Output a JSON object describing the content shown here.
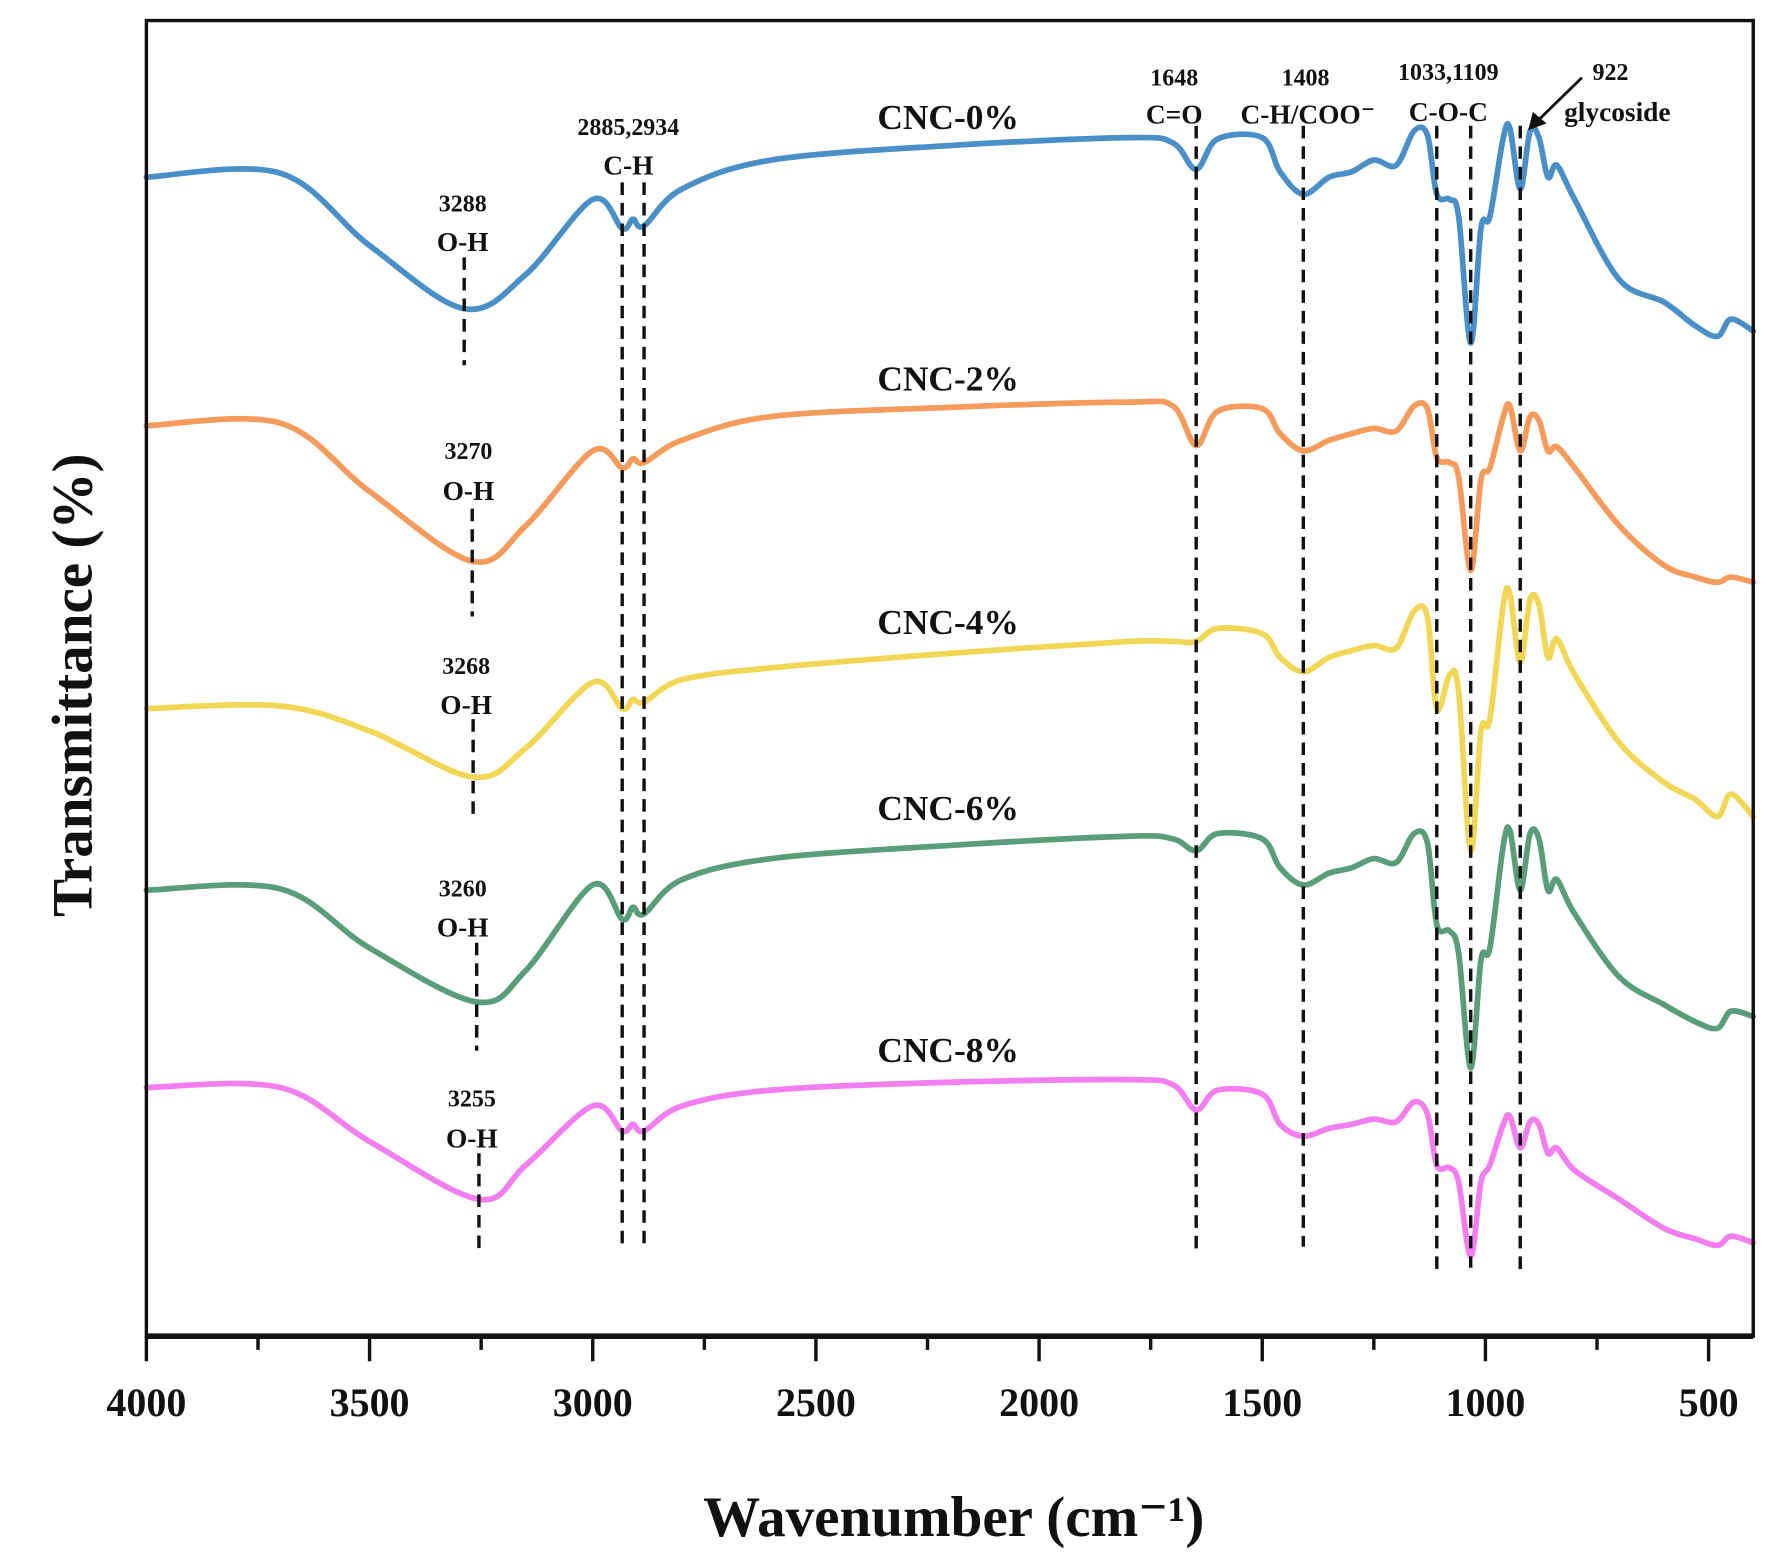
{
  "chart_data": {
    "type": "line",
    "title": "",
    "xlabel": "Wavenumber (cm⁻¹)",
    "ylabel": "Transmittance (%)",
    "xlim": [
      4000,
      400
    ],
    "ylim": [
      0,
      100
    ],
    "y_units": "arbitrary (stacked, offset)",
    "grid": false,
    "legend": "inline labels above each curve",
    "x_ticks": [
      "4000",
      "3500",
      "3000",
      "2500",
      "2000",
      "1500",
      "1000",
      "500"
    ],
    "x_tick_values": [
      4000,
      3500,
      3000,
      2500,
      2000,
      1500,
      1000,
      500
    ],
    "x_minor_tick_values": [
      3750,
      3250,
      2750,
      2250,
      1750,
      1250,
      750
    ],
    "series": [
      {
        "name": "CNC-0%",
        "color": "#4a8fc8",
        "x": [
          4000,
          3700,
          3500,
          3288,
          3150,
          3000,
          2934,
          2910,
          2885,
          2800,
          2600,
          2200,
          1800,
          1700,
          1648,
          1600,
          1500,
          1460,
          1408,
          1350,
          1300,
          1250,
          1200,
          1160,
          1130,
          1109,
          1080,
          1060,
          1033,
          1010,
          990,
          960,
          945,
          922,
          900,
          880,
          860,
          840,
          800,
          700,
          600,
          530,
          480,
          450,
          400
        ],
        "y": [
          88.1,
          88.4,
          82.9,
          78.1,
          80.7,
          86.4,
          84.2,
          84.9,
          84.4,
          87.2,
          89.4,
          90.5,
          91.1,
          90.7,
          88.7,
          91.0,
          91.1,
          88.5,
          86.8,
          88.1,
          88.5,
          89.4,
          89.0,
          91.6,
          91.3,
          86.8,
          86.4,
          85.1,
          75.5,
          84.2,
          85.1,
          91.1,
          91.8,
          87.2,
          91.6,
          91.1,
          88.1,
          89.0,
          86.4,
          80.3,
          78.6,
          76.8,
          76.0,
          77.3,
          76.4
        ]
      },
      {
        "name": "CNC-2%",
        "color": "#f59b5c",
        "x": [
          4000,
          3700,
          3500,
          3270,
          3150,
          3000,
          2934,
          2910,
          2885,
          2800,
          2600,
          2200,
          1800,
          1700,
          1648,
          1600,
          1500,
          1460,
          1408,
          1350,
          1300,
          1250,
          1200,
          1160,
          1130,
          1109,
          1080,
          1060,
          1033,
          1010,
          990,
          960,
          945,
          922,
          900,
          880,
          860,
          840,
          800,
          700,
          600,
          530,
          480,
          450,
          400
        ],
        "y": [
          69.2,
          69.4,
          64.2,
          58.9,
          61.6,
          67.3,
          66.0,
          66.7,
          66.4,
          68.1,
          69.9,
          70.6,
          71.0,
          70.7,
          67.7,
          70.3,
          70.5,
          68.6,
          67.3,
          68.1,
          68.6,
          69.0,
          68.8,
          70.7,
          70.5,
          66.8,
          66.4,
          65.3,
          58.2,
          65.1,
          66.0,
          69.9,
          70.7,
          67.3,
          69.9,
          69.6,
          67.3,
          67.6,
          66.0,
          61.6,
          58.6,
          57.7,
          57.3,
          57.7,
          57.3
        ]
      },
      {
        "name": "CNC-4%",
        "color": "#f2d756",
        "x": [
          4000,
          3700,
          3500,
          3268,
          3150,
          3000,
          2934,
          2910,
          2885,
          2800,
          2600,
          2200,
          1800,
          1700,
          1648,
          1600,
          1500,
          1460,
          1408,
          1350,
          1300,
          1250,
          1200,
          1160,
          1130,
          1109,
          1080,
          1060,
          1033,
          1010,
          990,
          960,
          945,
          922,
          900,
          880,
          860,
          840,
          800,
          700,
          600,
          530,
          480,
          450,
          400
        ],
        "y": [
          47.7,
          47.9,
          46.0,
          42.5,
          44.7,
          49.7,
          47.7,
          48.4,
          48.2,
          49.9,
          50.8,
          51.9,
          52.8,
          52.8,
          52.8,
          53.8,
          53.4,
          51.6,
          50.5,
          51.6,
          52.1,
          52.5,
          52.3,
          55.1,
          54.7,
          47.7,
          50.3,
          49.0,
          36.9,
          46.0,
          46.9,
          55.6,
          56.4,
          51.2,
          56.0,
          55.6,
          51.6,
          53.0,
          50.3,
          45.1,
          42.1,
          40.8,
          39.5,
          41.2,
          39.5
        ]
      },
      {
        "name": "CNC-6%",
        "color": "#5a9d7b",
        "x": [
          4000,
          3700,
          3500,
          3260,
          3150,
          3000,
          2934,
          2910,
          2885,
          2800,
          2600,
          2200,
          1800,
          1700,
          1648,
          1600,
          1500,
          1460,
          1408,
          1350,
          1300,
          1250,
          1200,
          1160,
          1130,
          1109,
          1080,
          1060,
          1033,
          1010,
          990,
          960,
          945,
          922,
          900,
          880,
          860,
          840,
          800,
          700,
          600,
          530,
          480,
          450,
          400
        ],
        "y": [
          33.9,
          34.0,
          29.5,
          25.4,
          27.8,
          34.3,
          31.7,
          32.6,
          32.1,
          34.7,
          36.3,
          37.3,
          38.0,
          37.8,
          36.9,
          38.2,
          37.8,
          35.6,
          34.3,
          35.2,
          35.6,
          36.3,
          36.0,
          38.2,
          37.5,
          31.3,
          30.8,
          29.1,
          20.4,
          28.6,
          29.5,
          37.3,
          38.4,
          33.9,
          38.2,
          37.8,
          33.9,
          34.7,
          32.1,
          27.3,
          25.2,
          23.9,
          23.4,
          24.7,
          24.3
        ]
      },
      {
        "name": "CNC-8%",
        "color": "#f27ef0",
        "x": [
          4000,
          3700,
          3500,
          3255,
          3150,
          3000,
          2934,
          2910,
          2885,
          2800,
          2600,
          2200,
          1800,
          1700,
          1648,
          1600,
          1500,
          1460,
          1408,
          1350,
          1300,
          1250,
          1200,
          1160,
          1130,
          1109,
          1080,
          1060,
          1033,
          1010,
          990,
          960,
          945,
          922,
          900,
          880,
          860,
          840,
          800,
          700,
          600,
          530,
          480,
          450,
          400
        ],
        "y": [
          18.9,
          18.9,
          14.8,
          10.4,
          13.0,
          17.5,
          15.6,
          16.1,
          15.6,
          17.5,
          18.7,
          19.3,
          19.5,
          19.1,
          17.2,
          18.7,
          18.4,
          16.1,
          15.2,
          15.8,
          16.1,
          16.5,
          16.3,
          17.8,
          16.9,
          13.0,
          12.8,
          11.7,
          6.1,
          11.7,
          13.0,
          16.1,
          16.7,
          14.3,
          16.3,
          16.1,
          13.9,
          14.3,
          12.6,
          10.4,
          8.2,
          7.4,
          6.9,
          7.6,
          7.1
        ]
      }
    ],
    "reference_lines": [
      {
        "x": 2934,
        "y_range": [
          6.8,
          87.7
        ]
      },
      {
        "x": 2885,
        "y_range": [
          6.8,
          87.7
        ]
      },
      {
        "x": 1648,
        "y_range": [
          6.6,
          92.0
        ]
      },
      {
        "x": 1408,
        "y_range": [
          6.8,
          92.0
        ]
      },
      {
        "x": 1109,
        "y_range": [
          4.8,
          92.0
        ]
      },
      {
        "x": 1033,
        "y_range": [
          5.2,
          92.0
        ]
      },
      {
        "x": 922,
        "y_range": [
          4.5,
          92.0
        ]
      },
      {
        "x": 3288,
        "y_range": [
          73.8,
          82.0
        ]
      },
      {
        "x": 3270,
        "y_range": [
          54.7,
          62.9
        ]
      },
      {
        "x": 3268,
        "y_range": [
          39.1,
          46.9
        ]
      },
      {
        "x": 3260,
        "y_range": [
          21.7,
          29.9
        ]
      },
      {
        "x": 3255,
        "y_range": [
          6.1,
          13.9
        ]
      }
    ],
    "annotations": {
      "ch": {
        "value": "2885,2934",
        "group": "C-H"
      },
      "co": {
        "value": "1648",
        "group": "C=O"
      },
      "chcoo": {
        "value": "1408",
        "group": "C-H/COO⁻"
      },
      "coc": {
        "value": "1033,1109",
        "group": "C-O-C"
      },
      "gly": {
        "value": "922",
        "group": "glycoside"
      },
      "oh0": {
        "value": "3288",
        "group": "O-H"
      },
      "oh2": {
        "value": "3270",
        "group": "O-H"
      },
      "oh4": {
        "value": "3268",
        "group": "O-H"
      },
      "oh6": {
        "value": "3260",
        "group": "O-H"
      },
      "oh8": {
        "value": "3255",
        "group": "O-H"
      }
    }
  }
}
